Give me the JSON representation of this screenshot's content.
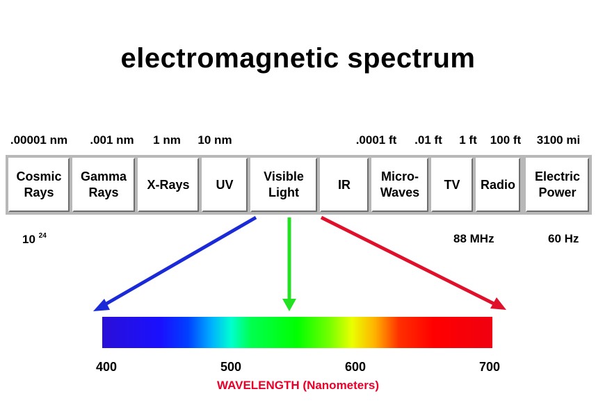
{
  "title": "electromagnetic spectrum",
  "wavelength_labels": [
    ".00001 nm",
    ".001 nm",
    "1 nm",
    "10 nm",
    ".0001 ft",
    ".01 ft",
    "1 ft",
    "100 ft",
    "3100 mi"
  ],
  "bands": [
    "Cosmic\nRays",
    "Gamma\nRays",
    "X-Rays",
    "UV",
    "Visible\nLight",
    "IR",
    "Micro-\nWaves",
    "TV",
    "Radio",
    "Electric\nPower"
  ],
  "frequency_labels": {
    "cosmic_base": "10",
    "cosmic_exp": "24",
    "tv": "88 MHz",
    "power": "60 Hz"
  },
  "visible_spectrum": {
    "ticks": [
      "400",
      "500",
      "600",
      "700"
    ],
    "axis_title": "WAVELENGTH (Nanometers)",
    "axis_title_color": "#e8002a"
  },
  "colors": {
    "arrow_left": "#1a2ad6",
    "arrow_center": "#22e022",
    "arrow_right": "#e0102a"
  }
}
